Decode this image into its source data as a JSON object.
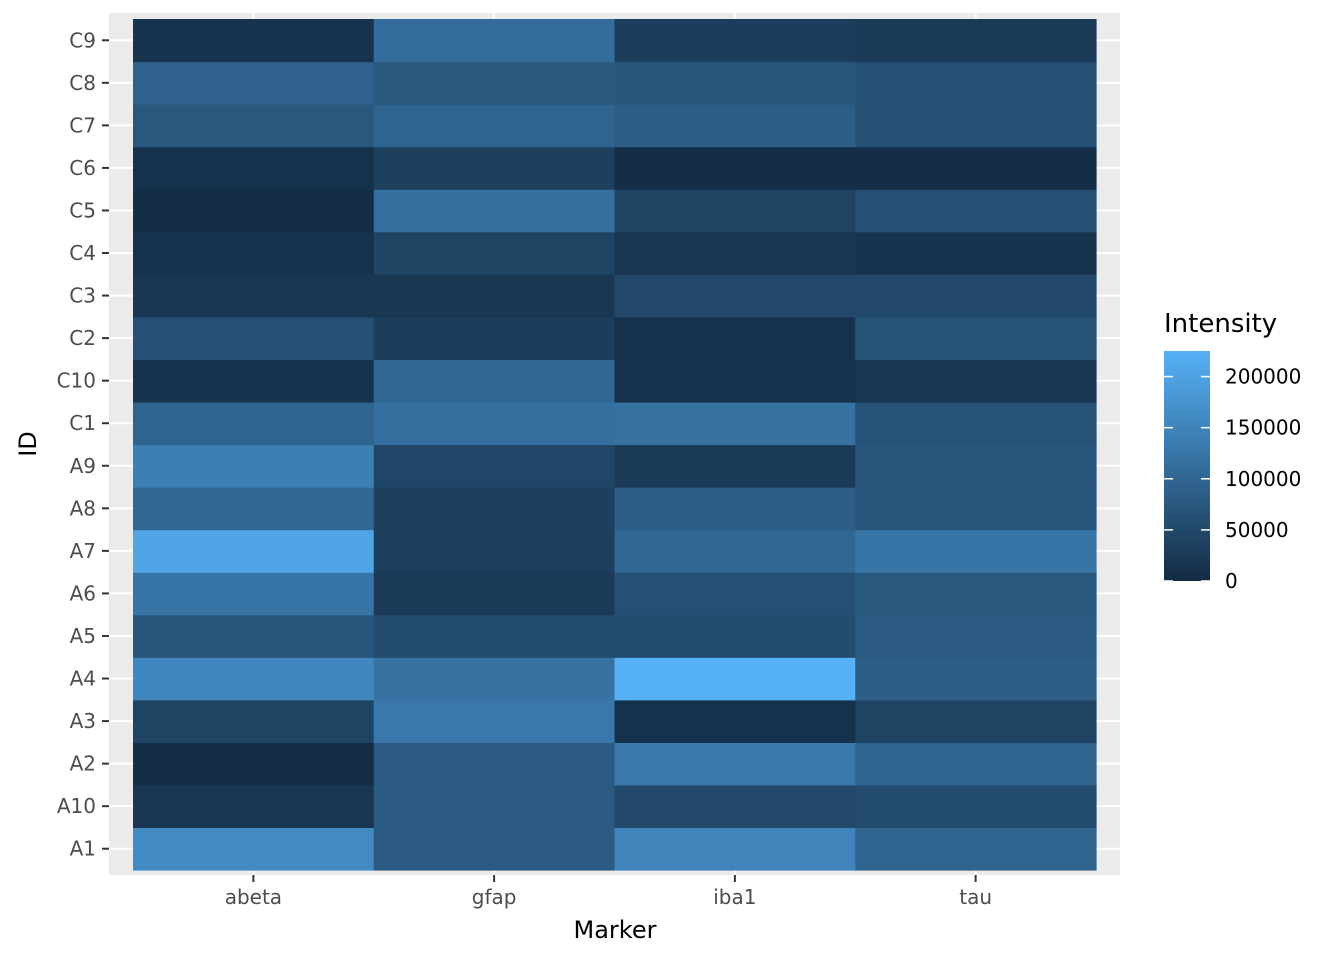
{
  "chart_data": {
    "type": "heatmap",
    "xlabel": "Marker",
    "ylabel": "ID",
    "x_categories": [
      "abeta",
      "gfap",
      "iba1",
      "tau"
    ],
    "y_categories": [
      "A1",
      "A10",
      "A2",
      "A3",
      "A4",
      "A5",
      "A6",
      "A7",
      "A8",
      "A9",
      "C1",
      "C10",
      "C2",
      "C3",
      "C4",
      "C5",
      "C6",
      "C7",
      "C8",
      "C9"
    ],
    "values": [
      [
        160000,
        80000,
        150000,
        95000
      ],
      [
        20000,
        80000,
        50000,
        55000
      ],
      [
        5000,
        80000,
        130000,
        95000
      ],
      [
        40000,
        130000,
        10000,
        40000
      ],
      [
        155000,
        120000,
        225000,
        85000
      ],
      [
        70000,
        55000,
        55000,
        80000
      ],
      [
        125000,
        25000,
        60000,
        75000
      ],
      [
        205000,
        35000,
        100000,
        125000
      ],
      [
        100000,
        35000,
        85000,
        70000
      ],
      [
        140000,
        45000,
        25000,
        70000
      ],
      [
        95000,
        115000,
        120000,
        65000
      ],
      [
        15000,
        100000,
        10000,
        20000
      ],
      [
        60000,
        30000,
        10000,
        65000
      ],
      [
        20000,
        20000,
        50000,
        50000
      ],
      [
        10000,
        40000,
        20000,
        15000
      ],
      [
        5000,
        115000,
        40000,
        60000
      ],
      [
        10000,
        35000,
        5000,
        5000
      ],
      [
        75000,
        95000,
        85000,
        60000
      ],
      [
        90000,
        75000,
        70000,
        60000
      ],
      [
        15000,
        110000,
        30000,
        25000
      ]
    ],
    "legend": {
      "title": "Intensity",
      "ticks": [
        0,
        50000,
        100000,
        150000,
        200000
      ],
      "tick_labels": [
        "0",
        "50000",
        "100000",
        "150000",
        "200000"
      ],
      "min": 0,
      "max": 225000,
      "low_color": "#132B43",
      "high_color": "#56B1F7",
      "placement": "right"
    },
    "panel_background": "#EBEBEB",
    "grid": true
  }
}
